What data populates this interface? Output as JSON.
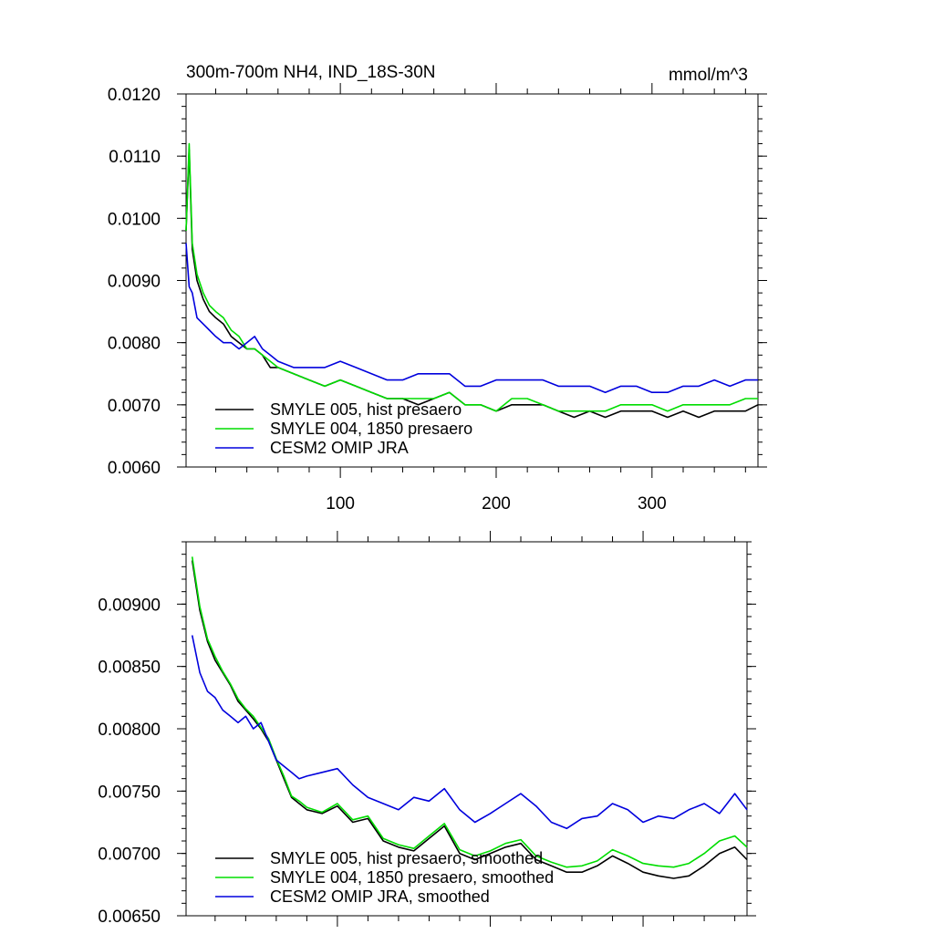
{
  "chart_data": [
    {
      "type": "line",
      "title": "300m-700m NH4, IND_18S-30N",
      "units": "mmol/m^3",
      "xlabel": "",
      "ylabel": "",
      "xlim": [
        1,
        368
      ],
      "ylim": [
        0.006,
        0.012
      ],
      "x_ticks": [
        100,
        200,
        300
      ],
      "x_tick_labels": [
        "100",
        "200",
        "300"
      ],
      "y_ticks": [
        0.006,
        0.007,
        0.008,
        0.009,
        0.01,
        0.011,
        0.012
      ],
      "y_tick_labels": [
        "0.0060",
        "0.0070",
        "0.0080",
        "0.0090",
        "0.0100",
        "0.0110",
        "0.0120"
      ],
      "grid": false,
      "legend_position": "bottom-left",
      "series": [
        {
          "name": "SMYLE 005, hist presaero",
          "color": "#000000",
          "x": [
            1,
            3,
            5,
            8,
            12,
            16,
            20,
            25,
            30,
            35,
            40,
            45,
            50,
            55,
            60,
            70,
            80,
            90,
            100,
            110,
            120,
            130,
            140,
            150,
            160,
            170,
            180,
            190,
            200,
            210,
            220,
            230,
            240,
            250,
            260,
            270,
            280,
            290,
            300,
            310,
            320,
            330,
            340,
            350,
            360,
            368
          ],
          "values": [
            0.0098,
            0.0111,
            0.0095,
            0.009,
            0.0087,
            0.0085,
            0.0084,
            0.0083,
            0.0081,
            0.008,
            0.0079,
            0.0079,
            0.0078,
            0.0076,
            0.0076,
            0.0075,
            0.0074,
            0.0073,
            0.0074,
            0.0073,
            0.0072,
            0.0071,
            0.0071,
            0.007,
            0.0071,
            0.0072,
            0.007,
            0.007,
            0.0069,
            0.007,
            0.007,
            0.007,
            0.0069,
            0.0068,
            0.0069,
            0.0068,
            0.0069,
            0.0069,
            0.0069,
            0.0068,
            0.0069,
            0.0068,
            0.0069,
            0.0069,
            0.0069,
            0.007
          ]
        },
        {
          "name": "SMYLE 004, 1850 presaero",
          "color": "#00dd00",
          "x": [
            1,
            3,
            5,
            8,
            12,
            16,
            20,
            25,
            30,
            35,
            40,
            45,
            50,
            55,
            60,
            70,
            80,
            90,
            100,
            110,
            120,
            130,
            140,
            150,
            160,
            170,
            180,
            190,
            200,
            210,
            220,
            230,
            240,
            250,
            260,
            270,
            280,
            290,
            300,
            310,
            320,
            330,
            340,
            350,
            360,
            368
          ],
          "values": [
            0.0098,
            0.0112,
            0.0096,
            0.0091,
            0.0088,
            0.0086,
            0.0085,
            0.0084,
            0.0082,
            0.0081,
            0.0079,
            0.0079,
            0.0078,
            0.0077,
            0.0076,
            0.0075,
            0.0074,
            0.0073,
            0.0074,
            0.0073,
            0.0072,
            0.0071,
            0.0071,
            0.0071,
            0.0071,
            0.0072,
            0.007,
            0.007,
            0.0069,
            0.0071,
            0.0071,
            0.007,
            0.0069,
            0.0069,
            0.0069,
            0.0069,
            0.007,
            0.007,
            0.007,
            0.0069,
            0.007,
            0.007,
            0.007,
            0.007,
            0.0071,
            0.0071
          ]
        },
        {
          "name": "CESM2 OMIP JRA",
          "color": "#0000dd",
          "x": [
            1,
            3,
            5,
            8,
            12,
            16,
            20,
            25,
            30,
            35,
            40,
            45,
            50,
            55,
            60,
            70,
            80,
            90,
            100,
            110,
            120,
            130,
            140,
            150,
            160,
            170,
            180,
            190,
            200,
            210,
            220,
            230,
            240,
            250,
            260,
            270,
            280,
            290,
            300,
            310,
            320,
            330,
            340,
            350,
            360,
            368
          ],
          "values": [
            0.0096,
            0.0089,
            0.0088,
            0.0084,
            0.0083,
            0.0082,
            0.0081,
            0.008,
            0.008,
            0.0079,
            0.008,
            0.0081,
            0.0079,
            0.0078,
            0.0077,
            0.0076,
            0.0076,
            0.0076,
            0.0077,
            0.0076,
            0.0075,
            0.0074,
            0.0074,
            0.0075,
            0.0075,
            0.0075,
            0.0073,
            0.0073,
            0.0074,
            0.0074,
            0.0074,
            0.0074,
            0.0073,
            0.0073,
            0.0073,
            0.0072,
            0.0073,
            0.0073,
            0.0072,
            0.0072,
            0.0073,
            0.0073,
            0.0074,
            0.0073,
            0.0074,
            0.0074
          ]
        }
      ]
    },
    {
      "type": "line",
      "title": "",
      "xlabel": "",
      "ylabel": "",
      "xlim": [
        1,
        368
      ],
      "ylim": [
        0.0065,
        0.0095
      ],
      "x_ticks": [
        100,
        200,
        300
      ],
      "y_ticks": [
        0.0065,
        0.007,
        0.0075,
        0.008,
        0.0085,
        0.009
      ],
      "y_tick_labels": [
        "0.00650",
        "0.00700",
        "0.00750",
        "0.00800",
        "0.00850",
        "0.00900"
      ],
      "grid": false,
      "legend_position": "bottom-left",
      "series": [
        {
          "name": "SMYLE 005, hist presaero, smoothed",
          "color": "#000000",
          "x": [
            5,
            10,
            15,
            20,
            25,
            30,
            35,
            40,
            45,
            50,
            55,
            60,
            65,
            70,
            75,
            80,
            90,
            100,
            110,
            120,
            130,
            140,
            150,
            160,
            170,
            180,
            190,
            200,
            210,
            220,
            230,
            240,
            250,
            260,
            270,
            280,
            290,
            300,
            310,
            320,
            330,
            340,
            350,
            360,
            368
          ],
          "values": [
            0.00935,
            0.00895,
            0.0087,
            0.00855,
            0.00845,
            0.00835,
            0.00822,
            0.00815,
            0.00808,
            0.008,
            0.0079,
            0.00775,
            0.0076,
            0.00745,
            0.0074,
            0.00735,
            0.00732,
            0.00738,
            0.00725,
            0.00728,
            0.0071,
            0.00705,
            0.00702,
            0.00712,
            0.00722,
            0.007,
            0.00695,
            0.007,
            0.00705,
            0.00708,
            0.00695,
            0.0069,
            0.00685,
            0.00685,
            0.0069,
            0.00698,
            0.00692,
            0.00685,
            0.00682,
            0.0068,
            0.00682,
            0.0069,
            0.007,
            0.00705,
            0.00695
          ]
        },
        {
          "name": "SMYLE 004, 1850 presaero, smoothed",
          "color": "#00dd00",
          "x": [
            5,
            10,
            15,
            20,
            25,
            30,
            35,
            40,
            45,
            50,
            55,
            60,
            65,
            70,
            75,
            80,
            90,
            100,
            110,
            120,
            130,
            140,
            150,
            160,
            170,
            180,
            190,
            200,
            210,
            220,
            230,
            240,
            250,
            260,
            270,
            280,
            290,
            300,
            310,
            320,
            330,
            340,
            350,
            360,
            368
          ],
          "values": [
            0.00938,
            0.00898,
            0.00872,
            0.00858,
            0.00846,
            0.00836,
            0.00824,
            0.00816,
            0.0081,
            0.00801,
            0.00792,
            0.00776,
            0.00762,
            0.00746,
            0.00742,
            0.00737,
            0.00733,
            0.0074,
            0.00727,
            0.0073,
            0.00712,
            0.00707,
            0.00704,
            0.00714,
            0.00724,
            0.00703,
            0.00698,
            0.00702,
            0.00708,
            0.00711,
            0.00698,
            0.00693,
            0.00689,
            0.0069,
            0.00694,
            0.00703,
            0.00698,
            0.00692,
            0.0069,
            0.00689,
            0.00692,
            0.007,
            0.0071,
            0.00714,
            0.00705
          ]
        },
        {
          "name": "CESM2 OMIP JRA, smoothed",
          "color": "#0000dd",
          "x": [
            5,
            10,
            15,
            20,
            25,
            30,
            35,
            40,
            45,
            50,
            55,
            60,
            65,
            70,
            75,
            80,
            90,
            100,
            110,
            120,
            130,
            140,
            150,
            160,
            170,
            180,
            190,
            200,
            210,
            220,
            230,
            240,
            250,
            260,
            270,
            280,
            290,
            300,
            310,
            320,
            330,
            340,
            350,
            360,
            368
          ],
          "values": [
            0.00875,
            0.00845,
            0.0083,
            0.00825,
            0.00815,
            0.0081,
            0.00805,
            0.0081,
            0.008,
            0.00805,
            0.0079,
            0.00775,
            0.0077,
            0.00765,
            0.0076,
            0.00762,
            0.00765,
            0.00768,
            0.00755,
            0.00745,
            0.0074,
            0.00735,
            0.00745,
            0.00742,
            0.00752,
            0.00735,
            0.00725,
            0.00732,
            0.0074,
            0.00748,
            0.00738,
            0.00725,
            0.0072,
            0.00728,
            0.0073,
            0.0074,
            0.00735,
            0.00725,
            0.0073,
            0.00728,
            0.00735,
            0.0074,
            0.00732,
            0.00748,
            0.00735
          ]
        }
      ]
    }
  ]
}
